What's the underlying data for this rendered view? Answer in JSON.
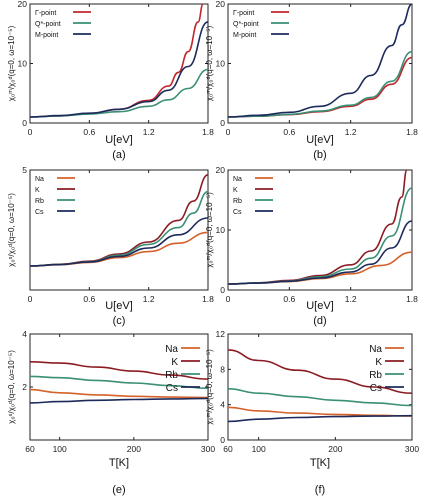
{
  "chart_data": [
    {
      "type": "line",
      "panel_label": "(a)",
      "xlabel": "U[eV]",
      "ylabel": "χ₀ᵐ/χ₀ᵈ(q=0, ω=10⁻⁵)",
      "xlim": [
        0,
        1.8
      ],
      "ylim": [
        0,
        20
      ],
      "xticks": [
        "0",
        "0.6",
        "1.2",
        "1.8"
      ],
      "yticks": [
        "0",
        "10",
        "20"
      ],
      "legend_position": "top-left",
      "series": [
        {
          "name": "Γ-point",
          "color": "#c0272d",
          "x": [
            0,
            0.3,
            0.6,
            0.9,
            1.2,
            1.4,
            1.5,
            1.6,
            1.7,
            1.75
          ],
          "y": [
            1.0,
            1.2,
            1.6,
            2.3,
            3.8,
            6.2,
            8.5,
            12.0,
            17.0,
            20.0
          ]
        },
        {
          "name": "Q*-point",
          "color": "#3a8f76",
          "x": [
            0,
            0.3,
            0.6,
            0.9,
            1.2,
            1.4,
            1.6,
            1.8
          ],
          "y": [
            1.0,
            1.2,
            1.5,
            1.9,
            2.8,
            3.9,
            5.8,
            9.0
          ]
        },
        {
          "name": "M-point",
          "color": "#1d2b5c",
          "x": [
            0,
            0.3,
            0.6,
            0.9,
            1.2,
            1.4,
            1.6,
            1.8
          ],
          "y": [
            1.0,
            1.25,
            1.65,
            2.3,
            3.6,
            5.5,
            9.5,
            17.0
          ]
        }
      ]
    },
    {
      "type": "line",
      "panel_label": "(b)",
      "xlabel": "U[eV]",
      "ylabel": "χ₀ᵐ/χ₀ᵈ(q=0, ω=10⁻⁵)",
      "xlim": [
        0,
        1.8
      ],
      "ylim": [
        0,
        20
      ],
      "xticks": [
        "0",
        "0.6",
        "1.2",
        "1.8"
      ],
      "yticks": [
        "0",
        "10",
        "20"
      ],
      "legend_position": "top-left",
      "series": [
        {
          "name": "Γ-point",
          "color": "#c0272d",
          "x": [
            0,
            0.3,
            0.6,
            0.9,
            1.2,
            1.4,
            1.6,
            1.8
          ],
          "y": [
            1.0,
            1.15,
            1.4,
            1.9,
            2.8,
            4.0,
            6.5,
            11.0
          ]
        },
        {
          "name": "Q*-point",
          "color": "#3a8f76",
          "x": [
            0,
            0.3,
            0.6,
            0.9,
            1.2,
            1.4,
            1.6,
            1.8
          ],
          "y": [
            1.0,
            1.15,
            1.45,
            2.0,
            3.0,
            4.3,
            7.0,
            12.0
          ]
        },
        {
          "name": "M-point",
          "color": "#1d2b5c",
          "x": [
            0,
            0.3,
            0.6,
            0.9,
            1.2,
            1.4,
            1.6,
            1.7,
            1.8
          ],
          "y": [
            1.0,
            1.3,
            1.8,
            2.8,
            5.0,
            8.0,
            13.0,
            16.5,
            20.0
          ]
        }
      ]
    },
    {
      "type": "line",
      "panel_label": "(c)",
      "xlabel": "U[eV]",
      "ylabel": "χ₀ˢ/χ₀ᵈ(q=0, ω=10⁻⁵)",
      "xlim": [
        0,
        1.8
      ],
      "ylim": [
        0,
        5
      ],
      "xticks": [
        "0",
        "0.6",
        "1.2",
        "1.8"
      ],
      "yticks": [
        "5"
      ],
      "legend_position": "top-left",
      "series": [
        {
          "name": "Na",
          "color": "#d4622a",
          "x": [
            0,
            0.3,
            0.6,
            0.9,
            1.2,
            1.5,
            1.8
          ],
          "y": [
            1.0,
            1.05,
            1.15,
            1.35,
            1.6,
            1.95,
            2.4
          ]
        },
        {
          "name": "K",
          "color": "#8c1c24",
          "x": [
            0,
            0.3,
            0.6,
            0.9,
            1.2,
            1.5,
            1.65,
            1.8
          ],
          "y": [
            1.0,
            1.07,
            1.2,
            1.5,
            2.0,
            2.9,
            3.7,
            4.8
          ]
        },
        {
          "name": "Rb",
          "color": "#3a8f76",
          "x": [
            0,
            0.3,
            0.6,
            0.9,
            1.2,
            1.5,
            1.65,
            1.8
          ],
          "y": [
            1.0,
            1.06,
            1.18,
            1.45,
            1.9,
            2.6,
            3.2,
            4.1
          ]
        },
        {
          "name": "Cs",
          "color": "#1d2b5c",
          "x": [
            0,
            0.3,
            0.6,
            0.9,
            1.2,
            1.5,
            1.8
          ],
          "y": [
            1.0,
            1.06,
            1.17,
            1.4,
            1.75,
            2.3,
            3.0
          ]
        }
      ]
    },
    {
      "type": "line",
      "panel_label": "(d)",
      "xlabel": "U[eV]",
      "ylabel": "χ₀ᵐ/χ₀ᵈ(q=0, ω=10⁻⁵)",
      "xlim": [
        0,
        1.8
      ],
      "ylim": [
        0,
        20
      ],
      "xticks": [
        "0",
        "0.6",
        "1.2",
        "1.8"
      ],
      "yticks": [
        "0",
        "10",
        "20"
      ],
      "legend_position": "top-left",
      "series": [
        {
          "name": "Na",
          "color": "#d4622a",
          "x": [
            0,
            0.3,
            0.6,
            0.9,
            1.2,
            1.5,
            1.8
          ],
          "y": [
            1.0,
            1.15,
            1.4,
            1.9,
            2.7,
            4.1,
            6.3
          ]
        },
        {
          "name": "K",
          "color": "#8c1c24",
          "x": [
            0,
            0.3,
            0.6,
            0.9,
            1.2,
            1.4,
            1.6,
            1.7,
            1.75
          ],
          "y": [
            1.0,
            1.2,
            1.6,
            2.4,
            4.2,
            6.5,
            11.0,
            15.5,
            20.0
          ]
        },
        {
          "name": "Rb",
          "color": "#3a8f76",
          "x": [
            0,
            0.3,
            0.6,
            0.9,
            1.2,
            1.4,
            1.6,
            1.8
          ],
          "y": [
            1.0,
            1.18,
            1.5,
            2.2,
            3.5,
            5.3,
            9.0,
            17.0
          ]
        },
        {
          "name": "Cs",
          "color": "#1d2b5c",
          "x": [
            0,
            0.3,
            0.6,
            0.9,
            1.2,
            1.4,
            1.6,
            1.8
          ],
          "y": [
            1.0,
            1.15,
            1.45,
            2.0,
            3.0,
            4.3,
            7.0,
            11.5
          ]
        }
      ]
    },
    {
      "type": "line",
      "panel_label": "(e)",
      "xlabel": "T[K]",
      "ylabel": "χ₀ˢ/χ₀ᵈ(q=0, ω=10⁻⁵)",
      "xlim": [
        60,
        300
      ],
      "ylim": [
        0,
        4
      ],
      "xticks": [
        "60",
        "100",
        "200",
        "300"
      ],
      "yticks": [
        "2",
        "4"
      ],
      "legend_position": "top-right",
      "series": [
        {
          "name": "Na",
          "color": "#d4622a",
          "x": [
            60,
            100,
            150,
            200,
            250,
            300
          ],
          "y": [
            1.9,
            1.78,
            1.7,
            1.65,
            1.62,
            1.6
          ]
        },
        {
          "name": "K",
          "color": "#8c1c24",
          "x": [
            60,
            100,
            150,
            200,
            250,
            300
          ],
          "y": [
            2.95,
            2.9,
            2.75,
            2.6,
            2.45,
            2.3
          ]
        },
        {
          "name": "Rb",
          "color": "#3a8f76",
          "x": [
            60,
            100,
            150,
            200,
            250,
            300
          ],
          "y": [
            2.4,
            2.35,
            2.25,
            2.15,
            2.05,
            1.95
          ]
        },
        {
          "name": "Cs",
          "color": "#1d2b5c",
          "x": [
            60,
            100,
            150,
            200,
            250,
            300
          ],
          "y": [
            1.4,
            1.45,
            1.5,
            1.53,
            1.55,
            1.57
          ]
        }
      ]
    },
    {
      "type": "line",
      "panel_label": "(f)",
      "xlabel": "T[K]",
      "ylabel": "χ₀ᵐ/χ₀ᵈ(q=0, ω=10⁻⁵)",
      "xlim": [
        60,
        300
      ],
      "ylim": [
        0,
        12
      ],
      "xticks": [
        "60",
        "100",
        "200",
        "300"
      ],
      "yticks": [
        "0",
        "4",
        "8",
        "12"
      ],
      "legend_position": "top-right",
      "series": [
        {
          "name": "Na",
          "color": "#d4622a",
          "x": [
            60,
            100,
            150,
            200,
            250,
            300
          ],
          "y": [
            3.7,
            3.3,
            3.05,
            2.9,
            2.8,
            2.7
          ]
        },
        {
          "name": "K",
          "color": "#8c1c24",
          "x": [
            60,
            100,
            150,
            200,
            250,
            300
          ],
          "y": [
            10.2,
            9.0,
            7.9,
            6.9,
            6.0,
            5.3
          ]
        },
        {
          "name": "Rb",
          "color": "#3a8f76",
          "x": [
            60,
            100,
            150,
            200,
            250,
            300
          ],
          "y": [
            5.8,
            5.3,
            4.9,
            4.5,
            4.2,
            3.9
          ]
        },
        {
          "name": "Cs",
          "color": "#1d2b5c",
          "x": [
            60,
            100,
            150,
            200,
            250,
            300
          ],
          "y": [
            2.1,
            2.35,
            2.55,
            2.65,
            2.7,
            2.75
          ]
        }
      ]
    }
  ]
}
